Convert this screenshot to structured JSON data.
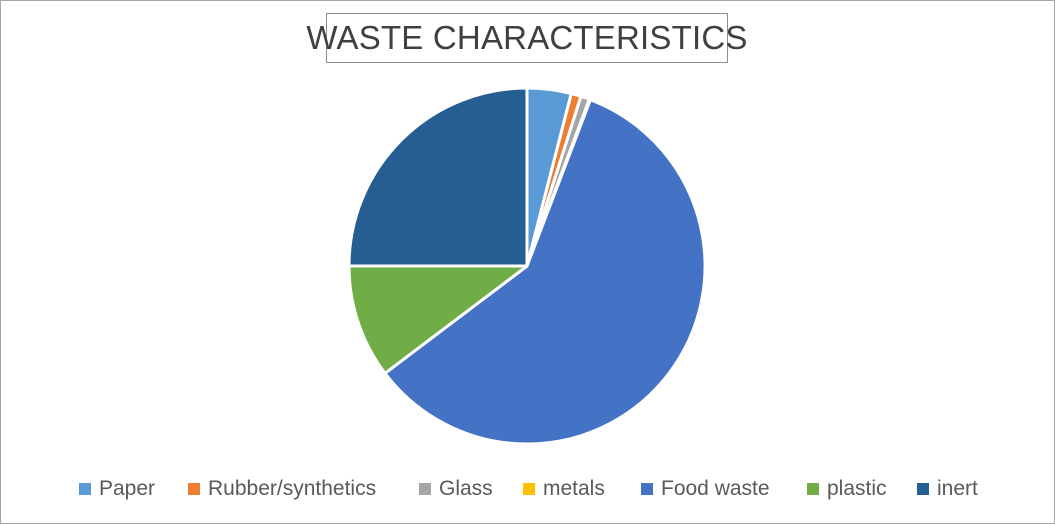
{
  "chart_data": {
    "type": "pie",
    "title": "WASTE CHARACTERISTICS",
    "categories": [
      "Paper",
      "Rubber/synthetics",
      "Glass",
      "metals",
      "Food waste",
      "plastic",
      "inert"
    ],
    "values": [
      4.0,
      0.9,
      0.8,
      0.1,
      58.9,
      10.3,
      25.0
    ],
    "colors": [
      "#5b9bd5",
      "#ed7d31",
      "#a5a5a5",
      "#ffc000",
      "#4472c4",
      "#70ad47",
      "#255e91"
    ],
    "legend_position": "bottom"
  }
}
